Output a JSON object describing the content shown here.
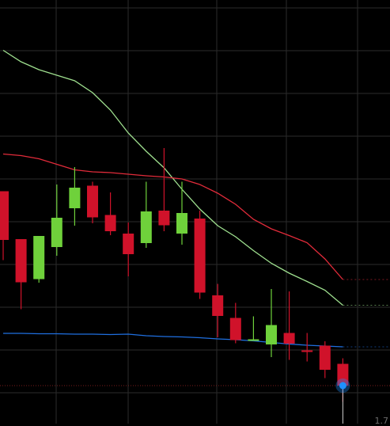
{
  "chart_data": {
    "type": "candlestick",
    "title": "",
    "xlabel": "",
    "ylabel": "",
    "ylim": [
      0,
      100
    ],
    "grid": true,
    "background": "#000000",
    "colors": {
      "up": "#6fd13b",
      "down": "#d0122a",
      "upper_band": "#9fe08f",
      "middle_band": "#e12b3a",
      "lower_band": "#1f6fe0",
      "grid": "#2b2b2b",
      "last_price": "#7a1c1c",
      "current_marker": "#1e90ff"
    },
    "candles": [
      {
        "i": 0,
        "open": 53.7,
        "close": 41.4,
        "high": 53.7,
        "low": 36.3
      },
      {
        "i": 1,
        "open": 41.6,
        "close": 30.7,
        "high": 41.6,
        "low": 23.9
      },
      {
        "i": 2,
        "open": 31.5,
        "close": 42.4,
        "high": 42.4,
        "low": 30.6
      },
      {
        "i": 3,
        "open": 39.6,
        "close": 47.0,
        "high": 55.4,
        "low": 37.4
      },
      {
        "i": 4,
        "open": 49.4,
        "close": 54.6,
        "high": 59.8,
        "low": 45.0
      },
      {
        "i": 5,
        "open": 55.1,
        "close": 47.1,
        "high": 56.1,
        "low": 45.6
      },
      {
        "i": 6,
        "open": 47.7,
        "close": 43.6,
        "high": 53.4,
        "low": 42.6
      },
      {
        "i": 7,
        "open": 43.0,
        "close": 37.8,
        "high": 45.8,
        "low": 32.2
      },
      {
        "i": 8,
        "open": 40.6,
        "close": 48.6,
        "high": 56.1,
        "low": 39.4
      },
      {
        "i": 9,
        "open": 48.8,
        "close": 45.1,
        "high": 64.6,
        "low": 43.6
      },
      {
        "i": 10,
        "open": 43.0,
        "close": 48.2,
        "high": 56.1,
        "low": 40.2
      },
      {
        "i": 11,
        "open": 46.8,
        "close": 28.1,
        "high": 48.8,
        "low": 26.5
      },
      {
        "i": 12,
        "open": 27.4,
        "close": 22.2,
        "high": 30.3,
        "low": 16.8
      },
      {
        "i": 13,
        "open": 21.7,
        "close": 16.1,
        "high": 25.5,
        "low": 15.3
      },
      {
        "i": 14,
        "open": 16.2,
        "close": 16.3,
        "high": 22.1,
        "low": 16.0
      },
      {
        "i": 15,
        "open": 15.0,
        "close": 19.9,
        "high": 29.0,
        "low": 11.8
      },
      {
        "i": 16,
        "open": 17.9,
        "close": 15.2,
        "high": 28.4,
        "low": 11.1
      },
      {
        "i": 17,
        "open": 13.5,
        "close": 13.1,
        "high": 17.9,
        "low": 10.7
      },
      {
        "i": 18,
        "open": 14.7,
        "close": 8.6,
        "high": 15.8,
        "low": 6.5
      },
      {
        "i": 19,
        "open": 10.1,
        "close": 4.6,
        "high": 11.5,
        "low": 0.5
      }
    ],
    "bands": {
      "upper": [
        89.3,
        86.4,
        84.4,
        83.0,
        81.6,
        78.6,
        74.2,
        68.4,
        63.8,
        59.6,
        54.2,
        49.2,
        45.0,
        42.2,
        38.7,
        35.5,
        33.0,
        30.9,
        28.7,
        24.9
      ],
      "middle": [
        63.1,
        62.7,
        61.9,
        60.5,
        59.1,
        58.6,
        58.4,
        58.0,
        57.6,
        57.3,
        56.8,
        55.4,
        53.2,
        50.4,
        46.6,
        44.2,
        42.5,
        40.7,
        36.6,
        31.4
      ],
      "lower": [
        17.8,
        17.8,
        17.7,
        17.7,
        17.6,
        17.6,
        17.5,
        17.6,
        17.2,
        17.0,
        16.9,
        16.7,
        16.4,
        16.2,
        15.9,
        15.5,
        15.1,
        14.8,
        14.6,
        14.4
      ]
    },
    "last_price": 4.6,
    "corner_label": "1.7"
  }
}
